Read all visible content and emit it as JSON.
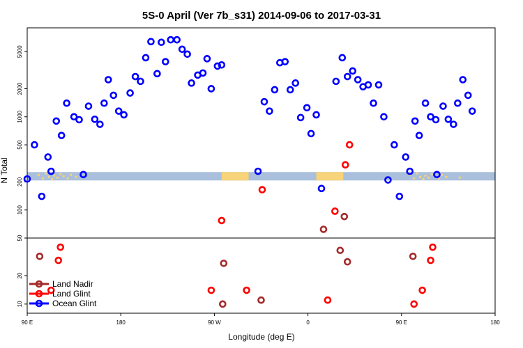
{
  "chart_data": {
    "type": "scatter",
    "title": "5S-0 April (Ver 7b_s31)   2014-09-06 to 2017-03-31",
    "xlabel": "Longitude (deg E)",
    "ylabel": "N Total",
    "x_axis": {
      "range_deg_east": [
        90,
        450
      ],
      "ticks": [
        {
          "value": 90,
          "label": "90 E"
        },
        {
          "value": 180,
          "label": "180"
        },
        {
          "value": 270,
          "label": "90 W"
        },
        {
          "value": 360,
          "label": "0"
        },
        {
          "value": 450,
          "label": "90 E"
        },
        {
          "value": 540,
          "label": "180"
        }
      ],
      "plot_range": [
        90,
        540
      ]
    },
    "y_axis": {
      "scale": "log",
      "upper_panel": {
        "range": [
          50,
          9000
        ],
        "ticks": [
          {
            "value": 100,
            "label": "100"
          },
          {
            "value": 200,
            "label": "200"
          },
          {
            "value": 500,
            "label": "500"
          },
          {
            "value": 1000,
            "label": "1000"
          },
          {
            "value": 2000,
            "label": "2000"
          },
          {
            "value": 5000,
            "label": "5000"
          }
        ]
      },
      "lower_panel": {
        "range": [
          8,
          50
        ],
        "ticks": [
          {
            "value": 10,
            "label": "10"
          },
          {
            "value": 20,
            "label": "20"
          },
          {
            "value": 50,
            "label": "50"
          }
        ]
      }
    },
    "land_band": {
      "y": 230,
      "color_ocean": "#a9bfdc",
      "color_land": "#f7d37a"
    },
    "legend": {
      "position": "bottom-left",
      "entries": [
        {
          "name": "Land Nadir",
          "color": "#a52a2a"
        },
        {
          "name": "Land Glint",
          "color": "#ff0000"
        },
        {
          "name": "Ocean Glint",
          "color": "#0000ff"
        }
      ]
    },
    "series": [
      {
        "name": "Ocean Glint",
        "color": "#0000ff",
        "points": [
          [
            90,
            215
          ],
          [
            97,
            500
          ],
          [
            104,
            140
          ],
          [
            110,
            370
          ],
          [
            113,
            260
          ],
          [
            118,
            900
          ],
          [
            123,
            630
          ],
          [
            128,
            1400
          ],
          [
            135,
            1000
          ],
          [
            140,
            930
          ],
          [
            144,
            240
          ],
          [
            149,
            1300
          ],
          [
            155,
            940
          ],
          [
            160,
            830
          ],
          [
            164,
            1400
          ],
          [
            168,
            2500
          ],
          [
            173,
            1700
          ],
          [
            178,
            1150
          ],
          [
            183,
            1050
          ],
          [
            189,
            1800
          ],
          [
            194,
            2700
          ],
          [
            199,
            2400
          ],
          [
            204,
            4300
          ],
          [
            209,
            6400
          ],
          [
            215,
            2900
          ],
          [
            219,
            6300
          ],
          [
            223,
            3900
          ],
          [
            228,
            6700
          ],
          [
            234,
            6700
          ],
          [
            239,
            5300
          ],
          [
            244,
            4700
          ],
          [
            248,
            2300
          ],
          [
            254,
            2800
          ],
          [
            259,
            2950
          ],
          [
            263,
            4200
          ],
          [
            267,
            2000
          ],
          [
            273,
            3500
          ],
          [
            277,
            3600
          ],
          [
            312,
            260
          ],
          [
            318,
            1450
          ],
          [
            323,
            1150
          ],
          [
            328,
            1950
          ],
          [
            333,
            3800
          ],
          [
            338,
            3900
          ],
          [
            343,
            1950
          ],
          [
            348,
            2300
          ],
          [
            353,
            980
          ],
          [
            359,
            1250
          ],
          [
            363,
            660
          ],
          [
            368,
            1050
          ],
          [
            373,
            170
          ],
          [
            387,
            2400
          ],
          [
            393,
            4300
          ],
          [
            398,
            2700
          ],
          [
            403,
            3100
          ],
          [
            408,
            2500
          ],
          [
            413,
            2100
          ],
          [
            418,
            2200
          ],
          [
            423,
            1400
          ],
          [
            428,
            2200
          ],
          [
            433,
            1000
          ],
          [
            437,
            210
          ],
          [
            443,
            500
          ],
          [
            448,
            140
          ],
          [
            454,
            370
          ],
          [
            458,
            260
          ],
          [
            463,
            900
          ],
          [
            467,
            630
          ],
          [
            473,
            1400
          ],
          [
            478,
            1000
          ],
          [
            483,
            930
          ],
          [
            484,
            240
          ],
          [
            490,
            1300
          ],
          [
            495,
            940
          ],
          [
            500,
            830
          ],
          [
            504,
            1400
          ],
          [
            509,
            2500
          ],
          [
            514,
            1700
          ],
          [
            518,
            1150
          ]
        ]
      },
      {
        "name": "Land Glint",
        "color": "#ff0000",
        "points": [
          [
            113,
            14
          ],
          [
            120,
            29
          ],
          [
            122,
            40
          ],
          [
            267,
            14
          ],
          [
            277,
            77
          ],
          [
            301,
            14
          ],
          [
            316,
            165
          ],
          [
            379,
            11
          ],
          [
            386,
            97
          ],
          [
            396,
            305
          ],
          [
            400,
            500
          ],
          [
            462,
            10
          ],
          [
            470,
            14
          ],
          [
            478,
            29
          ],
          [
            480,
            40
          ]
        ]
      },
      {
        "name": "Land Nadir",
        "color": "#a52a2a",
        "points": [
          [
            102,
            32
          ],
          [
            278,
            10
          ],
          [
            279,
            27
          ],
          [
            315,
            11
          ],
          [
            375,
            62
          ],
          [
            391,
            37
          ],
          [
            395,
            85
          ],
          [
            398,
            28
          ],
          [
            461,
            32
          ]
        ]
      }
    ]
  }
}
